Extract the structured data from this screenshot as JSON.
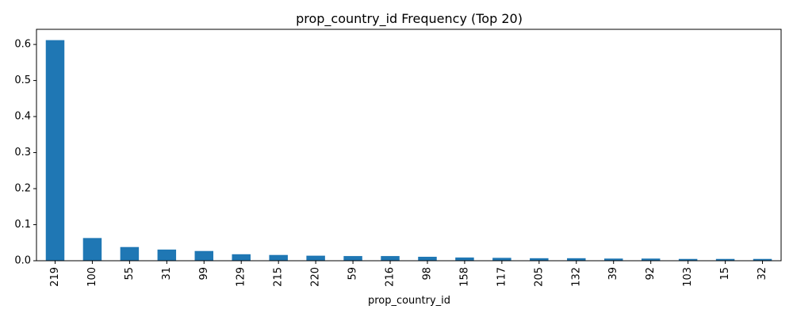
{
  "chart_data": {
    "type": "bar",
    "title": "prop_country_id Frequency (Top 20)",
    "xlabel": "prop_country_id",
    "ylabel": "",
    "categories": [
      "219",
      "100",
      "55",
      "31",
      "99",
      "129",
      "215",
      "220",
      "59",
      "216",
      "98",
      "158",
      "117",
      "205",
      "132",
      "39",
      "92",
      "103",
      "15",
      "32"
    ],
    "values": [
      0.612,
      0.063,
      0.038,
      0.031,
      0.027,
      0.018,
      0.016,
      0.014,
      0.013,
      0.013,
      0.011,
      0.009,
      0.008,
      0.007,
      0.007,
      0.006,
      0.006,
      0.005,
      0.005,
      0.005
    ],
    "ylim": [
      0,
      0.642
    ],
    "yticks": [
      "0.0",
      "0.1",
      "0.2",
      "0.3",
      "0.4",
      "0.5",
      "0.6"
    ],
    "grid": false,
    "bar_color": "#1f77b4"
  }
}
